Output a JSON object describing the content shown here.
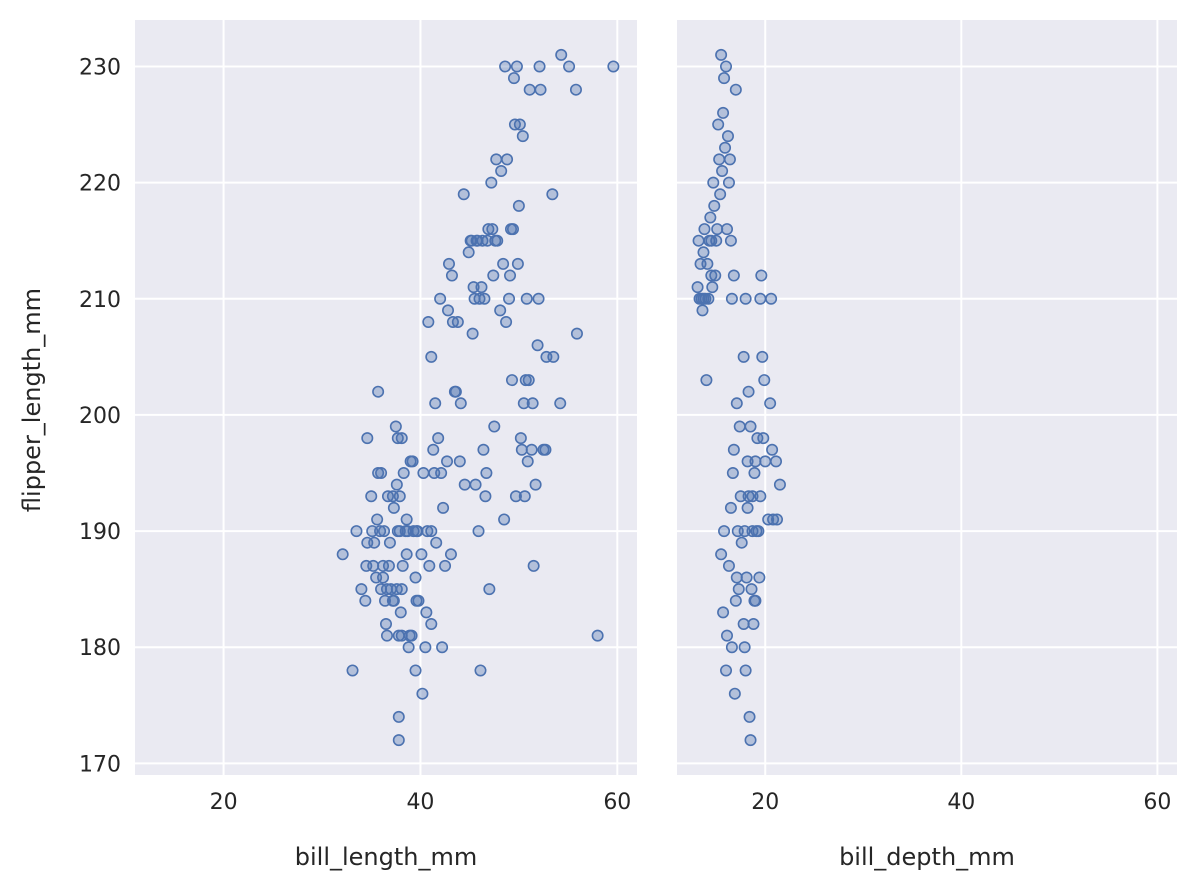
{
  "chart_data": [
    {
      "type": "scatter",
      "xlabel": "bill_length_mm",
      "ylabel": "flipper_length_mm",
      "xlim": [
        11,
        62
      ],
      "ylim": [
        169,
        234
      ],
      "xticks": [
        20,
        40,
        60
      ],
      "yticks": [
        170,
        180,
        190,
        200,
        210,
        220,
        230
      ],
      "grid": true,
      "points": [
        [
          32.1,
          188
        ],
        [
          33.1,
          178
        ],
        [
          33.5,
          190
        ],
        [
          34.0,
          185
        ],
        [
          34.4,
          184
        ],
        [
          34.5,
          187
        ],
        [
          34.6,
          198
        ],
        [
          34.6,
          189
        ],
        [
          35.0,
          193
        ],
        [
          35.1,
          190
        ],
        [
          35.2,
          187
        ],
        [
          35.3,
          189
        ],
        [
          35.5,
          186
        ],
        [
          35.6,
          191
        ],
        [
          35.7,
          195
        ],
        [
          35.7,
          202
        ],
        [
          35.9,
          190
        ],
        [
          36.0,
          185
        ],
        [
          36.0,
          195
        ],
        [
          36.2,
          186
        ],
        [
          36.2,
          187
        ],
        [
          36.3,
          190
        ],
        [
          36.4,
          184
        ],
        [
          36.5,
          182
        ],
        [
          36.6,
          181
        ],
        [
          36.6,
          185
        ],
        [
          36.7,
          193
        ],
        [
          36.8,
          187
        ],
        [
          36.9,
          189
        ],
        [
          37.0,
          185
        ],
        [
          37.2,
          184
        ],
        [
          37.2,
          193
        ],
        [
          37.3,
          192
        ],
        [
          37.3,
          184
        ],
        [
          37.5,
          199
        ],
        [
          37.6,
          194
        ],
        [
          37.6,
          185
        ],
        [
          37.7,
          190
        ],
        [
          37.7,
          198
        ],
        [
          37.8,
          181
        ],
        [
          37.8,
          174
        ],
        [
          37.8,
          172
        ],
        [
          37.9,
          190
        ],
        [
          37.9,
          193
        ],
        [
          38.0,
          183
        ],
        [
          38.1,
          181
        ],
        [
          38.1,
          185
        ],
        [
          38.1,
          198
        ],
        [
          38.2,
          187
        ],
        [
          38.3,
          195
        ],
        [
          38.5,
          190
        ],
        [
          38.6,
          188
        ],
        [
          38.6,
          191
        ],
        [
          38.7,
          190
        ],
        [
          38.8,
          180
        ],
        [
          38.9,
          181
        ],
        [
          39.0,
          196
        ],
        [
          39.1,
          181
        ],
        [
          39.2,
          196
        ],
        [
          39.3,
          190
        ],
        [
          39.5,
          178
        ],
        [
          39.5,
          186
        ],
        [
          39.6,
          184
        ],
        [
          39.6,
          190
        ],
        [
          39.7,
          190
        ],
        [
          39.8,
          184
        ],
        [
          40.1,
          188
        ],
        [
          40.2,
          176
        ],
        [
          40.3,
          195
        ],
        [
          40.5,
          180
        ],
        [
          40.6,
          183
        ],
        [
          40.7,
          190
        ],
        [
          40.8,
          208
        ],
        [
          40.9,
          187
        ],
        [
          41.1,
          182
        ],
        [
          41.1,
          205
        ],
        [
          41.1,
          190
        ],
        [
          41.3,
          197
        ],
        [
          41.4,
          195
        ],
        [
          41.5,
          201
        ],
        [
          41.6,
          189
        ],
        [
          41.8,
          198
        ],
        [
          42.0,
          210
        ],
        [
          42.1,
          195
        ],
        [
          42.2,
          180
        ],
        [
          42.3,
          192
        ],
        [
          42.5,
          187
        ],
        [
          42.7,
          196
        ],
        [
          42.8,
          209
        ],
        [
          42.9,
          213
        ],
        [
          43.1,
          188
        ],
        [
          43.2,
          212
        ],
        [
          43.3,
          208
        ],
        [
          43.5,
          202
        ],
        [
          43.6,
          202
        ],
        [
          43.8,
          208
        ],
        [
          44.0,
          196
        ],
        [
          44.1,
          201
        ],
        [
          44.4,
          219
        ],
        [
          44.5,
          194
        ],
        [
          44.9,
          214
        ],
        [
          45.1,
          215
        ],
        [
          45.2,
          215
        ],
        [
          45.3,
          207
        ],
        [
          45.4,
          211
        ],
        [
          45.5,
          210
        ],
        [
          45.6,
          194
        ],
        [
          45.7,
          215
        ],
        [
          45.8,
          215
        ],
        [
          45.9,
          190
        ],
        [
          46.0,
          210
        ],
        [
          46.1,
          178
        ],
        [
          46.2,
          211
        ],
        [
          46.3,
          215
        ],
        [
          46.4,
          197
        ],
        [
          46.5,
          210
        ],
        [
          46.6,
          193
        ],
        [
          46.7,
          195
        ],
        [
          46.8,
          215
        ],
        [
          46.9,
          216
        ],
        [
          47.0,
          185
        ],
        [
          47.2,
          220
        ],
        [
          47.3,
          216
        ],
        [
          47.4,
          212
        ],
        [
          47.5,
          199
        ],
        [
          47.6,
          215
        ],
        [
          47.7,
          222
        ],
        [
          47.8,
          215
        ],
        [
          48.1,
          209
        ],
        [
          48.2,
          221
        ],
        [
          48.4,
          213
        ],
        [
          48.5,
          191
        ],
        [
          48.6,
          230
        ],
        [
          48.7,
          208
        ],
        [
          48.8,
          222
        ],
        [
          49.0,
          210
        ],
        [
          49.1,
          212
        ],
        [
          49.2,
          216
        ],
        [
          49.3,
          203
        ],
        [
          49.4,
          216
        ],
        [
          49.5,
          229
        ],
        [
          49.6,
          225
        ],
        [
          49.7,
          193
        ],
        [
          49.8,
          230
        ],
        [
          49.9,
          213
        ],
        [
          50.0,
          218
        ],
        [
          50.1,
          225
        ],
        [
          50.2,
          198
        ],
        [
          50.3,
          197
        ],
        [
          50.4,
          224
        ],
        [
          50.5,
          201
        ],
        [
          50.6,
          193
        ],
        [
          50.7,
          203
        ],
        [
          50.8,
          210
        ],
        [
          50.9,
          196
        ],
        [
          51.0,
          203
        ],
        [
          51.1,
          228
        ],
        [
          51.3,
          197
        ],
        [
          51.4,
          201
        ],
        [
          51.5,
          187
        ],
        [
          51.7,
          194
        ],
        [
          51.9,
          206
        ],
        [
          52.0,
          210
        ],
        [
          52.1,
          230
        ],
        [
          52.2,
          228
        ],
        [
          52.5,
          197
        ],
        [
          52.7,
          197
        ],
        [
          52.8,
          205
        ],
        [
          53.4,
          219
        ],
        [
          53.5,
          205
        ],
        [
          54.2,
          201
        ],
        [
          54.3,
          231
        ],
        [
          55.1,
          230
        ],
        [
          55.8,
          228
        ],
        [
          55.9,
          207
        ],
        [
          58.0,
          181
        ],
        [
          59.6,
          230
        ]
      ]
    },
    {
      "type": "scatter",
      "xlabel": "bill_depth_mm",
      "ylabel": "flipper_length_mm",
      "xlim": [
        11,
        62
      ],
      "ylim": [
        169,
        234
      ],
      "xticks": [
        20,
        40,
        60
      ],
      "yticks": [
        170,
        180,
        190,
        200,
        210,
        220,
        230
      ],
      "grid": true,
      "points": [
        [
          13.1,
          211
        ],
        [
          13.2,
          215
        ],
        [
          13.3,
          210
        ],
        [
          13.4,
          213
        ],
        [
          13.5,
          210
        ],
        [
          13.6,
          209
        ],
        [
          13.7,
          214
        ],
        [
          13.7,
          210
        ],
        [
          13.8,
          216
        ],
        [
          13.9,
          210
        ],
        [
          14.0,
          203
        ],
        [
          14.1,
          213
        ],
        [
          14.2,
          210
        ],
        [
          14.3,
          215
        ],
        [
          14.4,
          217
        ],
        [
          14.5,
          212
        ],
        [
          14.5,
          215
        ],
        [
          14.6,
          211
        ],
        [
          14.7,
          220
        ],
        [
          14.8,
          218
        ],
        [
          14.9,
          212
        ],
        [
          15.0,
          215
        ],
        [
          15.1,
          216
        ],
        [
          15.2,
          225
        ],
        [
          15.3,
          222
        ],
        [
          15.4,
          219
        ],
        [
          15.5,
          231
        ],
        [
          15.6,
          221
        ],
        [
          15.7,
          226
        ],
        [
          15.8,
          229
        ],
        [
          15.9,
          223
        ],
        [
          16.0,
          230
        ],
        [
          16.1,
          216
        ],
        [
          16.2,
          224
        ],
        [
          16.3,
          220
        ],
        [
          16.4,
          222
        ],
        [
          16.5,
          215
        ],
        [
          16.6,
          210
        ],
        [
          16.8,
          212
        ],
        [
          17.0,
          228
        ],
        [
          15.5,
          188
        ],
        [
          15.7,
          183
        ],
        [
          15.8,
          190
        ],
        [
          16.0,
          178
        ],
        [
          16.1,
          181
        ],
        [
          16.3,
          187
        ],
        [
          16.5,
          192
        ],
        [
          16.6,
          180
        ],
        [
          16.7,
          195
        ],
        [
          16.9,
          176
        ],
        [
          17.0,
          184
        ],
        [
          17.1,
          186
        ],
        [
          17.2,
          190
        ],
        [
          17.3,
          185
        ],
        [
          17.5,
          193
        ],
        [
          17.6,
          189
        ],
        [
          17.8,
          182
        ],
        [
          17.9,
          190
        ],
        [
          18.0,
          178
        ],
        [
          18.1,
          186
        ],
        [
          18.2,
          192
        ],
        [
          18.3,
          202
        ],
        [
          18.4,
          174
        ],
        [
          18.5,
          172
        ],
        [
          18.6,
          185
        ],
        [
          18.7,
          193
        ],
        [
          18.8,
          182
        ],
        [
          18.9,
          195
        ],
        [
          19.0,
          184
        ],
        [
          19.1,
          190
        ],
        [
          19.2,
          198
        ],
        [
          19.4,
          186
        ],
        [
          19.5,
          210
        ],
        [
          19.6,
          212
        ],
        [
          19.7,
          205
        ],
        [
          19.8,
          198
        ],
        [
          19.9,
          203
        ],
        [
          20.0,
          196
        ],
        [
          20.3,
          191
        ],
        [
          20.5,
          201
        ],
        [
          20.6,
          210
        ],
        [
          20.7,
          197
        ],
        [
          20.8,
          191
        ],
        [
          21.1,
          196
        ],
        [
          21.2,
          191
        ],
        [
          21.5,
          194
        ],
        [
          17.8,
          205
        ],
        [
          18.0,
          210
        ],
        [
          18.2,
          196
        ],
        [
          18.3,
          193
        ],
        [
          18.5,
          199
        ],
        [
          18.7,
          190
        ],
        [
          18.9,
          184
        ],
        [
          19.0,
          196
        ],
        [
          19.3,
          190
        ],
        [
          19.5,
          193
        ],
        [
          17.9,
          180
        ],
        [
          17.4,
          199
        ],
        [
          16.8,
          197
        ],
        [
          17.1,
          201
        ]
      ]
    }
  ]
}
